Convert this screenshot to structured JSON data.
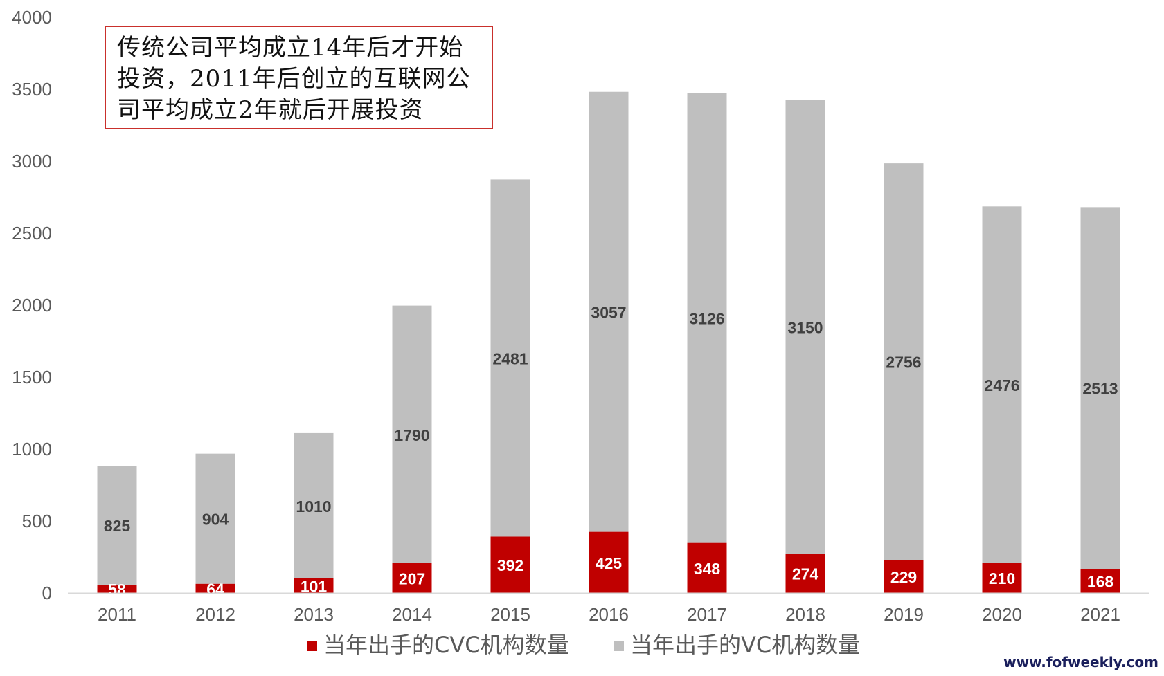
{
  "chart_data": {
    "type": "bar",
    "stacked": true,
    "categories": [
      "2011",
      "2012",
      "2013",
      "2014",
      "2015",
      "2016",
      "2017",
      "2018",
      "2019",
      "2020",
      "2021"
    ],
    "series": [
      {
        "name": "当年出手的CVC机构数量",
        "color": "#c00000",
        "values": [
          58,
          64,
          101,
          207,
          392,
          425,
          348,
          274,
          229,
          210,
          168
        ]
      },
      {
        "name": "当年出手的VC机构数量",
        "color": "#bfbfbf",
        "values": [
          825,
          904,
          1010,
          1790,
          2481,
          3057,
          3126,
          3150,
          2756,
          2476,
          2513
        ]
      }
    ],
    "ylim": [
      0,
      4000
    ],
    "yticks": [
      0,
      500,
      1000,
      1500,
      2000,
      2500,
      3000,
      3500,
      4000
    ],
    "grid": false,
    "legend_position": "bottom",
    "annotation": [
      "传统公司平均成立14年后才开始",
      "投资，2011年后创立的互联网公",
      "司平均成立2年就后开展投资"
    ]
  },
  "watermark": "www.fofweekly.com"
}
